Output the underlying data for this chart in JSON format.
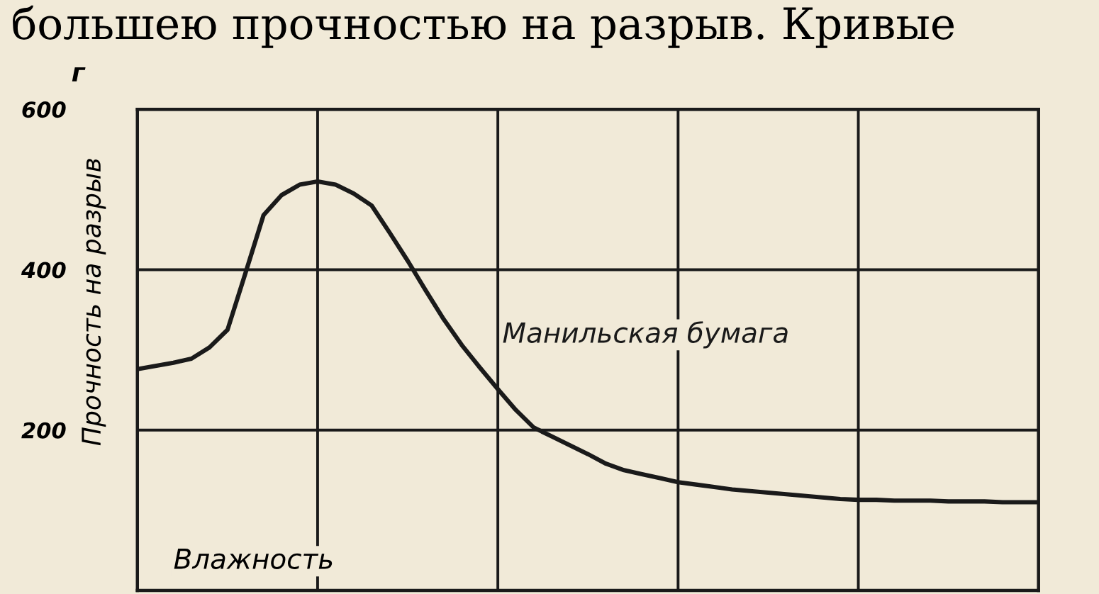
{
  "chart_data": {
    "type": "line",
    "ylabel": "Прочность на разрыв",
    "xlabel": "Влажность",
    "annotations": [
      "большею прочностью на разрыв. Кривые",
      "г"
    ],
    "categories": [
      null,
      null,
      null,
      null,
      null,
      null,
      null,
      null,
      null,
      null,
      null,
      null,
      null,
      null,
      null,
      null,
      null,
      null,
      null,
      null,
      null,
      null,
      null,
      null,
      null,
      null,
      null,
      null,
      null,
      null,
      null,
      null,
      null,
      null,
      null,
      null,
      null,
      null,
      null,
      null,
      null,
      null,
      null,
      null,
      null,
      null,
      null,
      null,
      null,
      null,
      null
    ],
    "series": [
      {
        "name": "Манильская бумага",
        "color": "#1a1a1a",
        "values": [
          276,
          280,
          284,
          289,
          303,
          325,
          396,
          468,
          493,
          506,
          510,
          506,
          495,
          480,
          446,
          411,
          374,
          338,
          306,
          278,
          251,
          225,
          203,
          192,
          181,
          170,
          158,
          150,
          145,
          140,
          135,
          132,
          129,
          126,
          124,
          122,
          120,
          118,
          116,
          114,
          113,
          113,
          112,
          112,
          112,
          111,
          111,
          111,
          110,
          110,
          110
        ]
      }
    ],
    "ylim": [
      0,
      600
    ],
    "yticks": [
      {
        "value": 0,
        "label": null
      },
      200,
      400,
      600
    ],
    "grid": true,
    "tick_labels": "y",
    "line_style": "solid",
    "marker": "none"
  }
}
